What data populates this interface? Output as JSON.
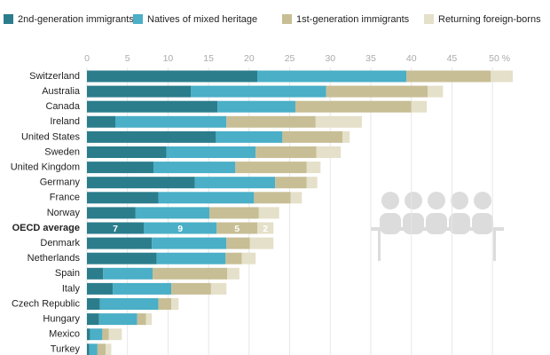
{
  "chart_data": {
    "type": "stacked-bar-horizontal",
    "categories": [
      "Switzerland",
      "Australia",
      "Canada",
      "Ireland",
      "United States",
      "Sweden",
      "United Kingdom",
      "Germany",
      "France",
      "Norway",
      "OECD average",
      "Denmark",
      "Netherlands",
      "Spain",
      "Italy",
      "Czech Republic",
      "Hungary",
      "Mexico",
      "Turkey"
    ],
    "series": [
      {
        "name": "2nd-generation immigrants",
        "color": "#2b7d8c",
        "values": [
          21,
          12.8,
          16.1,
          3.5,
          15.9,
          9.8,
          8.2,
          13.3,
          8.8,
          6,
          7,
          8,
          8.6,
          2,
          3.2,
          1.6,
          1.5,
          0.4,
          0.3
        ],
        "value_labels": [
          null,
          null,
          null,
          null,
          null,
          null,
          null,
          null,
          null,
          null,
          "7",
          null,
          null,
          null,
          null,
          null,
          null,
          null,
          null
        ]
      },
      {
        "name": "Natives of mixed heritage",
        "color": "#4aafc7",
        "values": [
          18.4,
          16.7,
          9.6,
          13.7,
          8.2,
          11,
          10.1,
          9.9,
          11.8,
          9.1,
          9,
          9.2,
          8.5,
          6.1,
          7.2,
          7.2,
          4.7,
          1.5,
          1
        ],
        "value_labels": [
          null,
          null,
          null,
          null,
          null,
          null,
          null,
          null,
          null,
          null,
          "9",
          null,
          null,
          null,
          null,
          null,
          null,
          null,
          null
        ]
      },
      {
        "name": "1st-generation immigrants",
        "color": "#c7be95",
        "values": [
          10.4,
          12.5,
          14.3,
          11,
          7.4,
          7.5,
          8.8,
          3.9,
          4.5,
          6.1,
          5,
          2.9,
          2,
          9.2,
          4.9,
          1.6,
          1.1,
          0.8,
          1
        ],
        "value_labels": [
          null,
          null,
          null,
          null,
          null,
          null,
          null,
          null,
          null,
          null,
          "5",
          null,
          null,
          null,
          null,
          null,
          null,
          null,
          null
        ]
      },
      {
        "name": "Returning foreign-borns",
        "color": "#e5e0c9",
        "values": [
          2.7,
          1.9,
          1.9,
          5.7,
          0.9,
          3,
          1.7,
          1.3,
          1.4,
          2.5,
          2,
          2.9,
          1.7,
          1.5,
          1.9,
          0.9,
          0.7,
          1.6,
          0.7
        ],
        "value_labels": [
          null,
          null,
          null,
          null,
          null,
          null,
          null,
          null,
          null,
          null,
          "2",
          null,
          null,
          null,
          null,
          null,
          null,
          null,
          null
        ]
      }
    ],
    "xlim": [
      0,
      52.5
    ],
    "xticks": [
      0,
      5,
      10,
      15,
      20,
      25,
      30,
      35,
      40,
      45,
      {
        "value": 50,
        "label": "50 %"
      }
    ],
    "grid": true
  }
}
